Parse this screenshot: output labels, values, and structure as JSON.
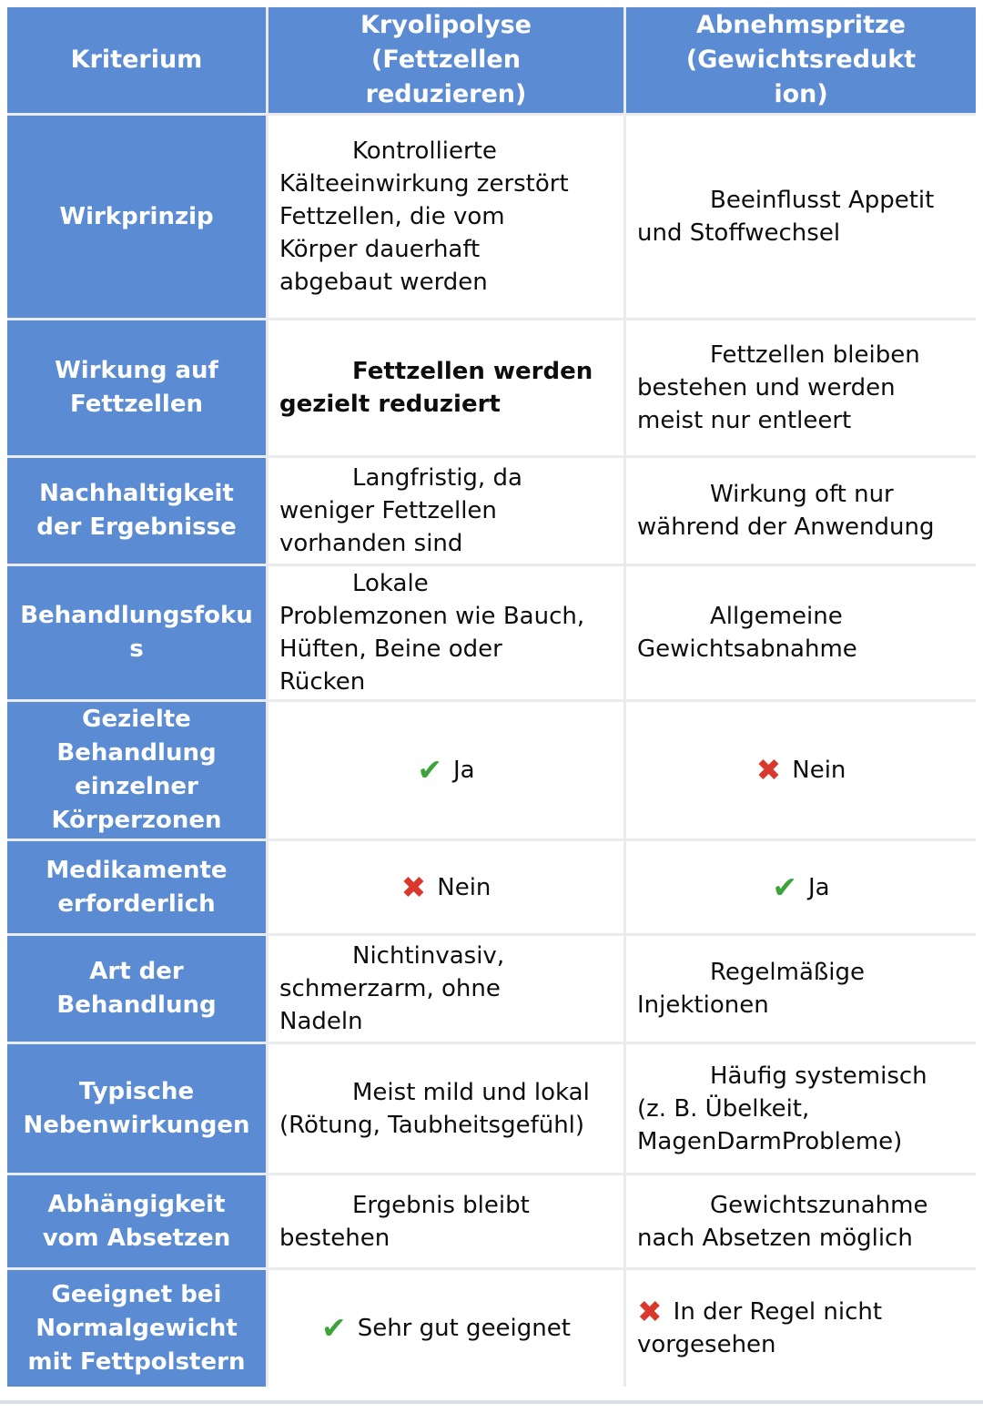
{
  "table": {
    "header": {
      "criterion": "Kriterium",
      "col2": {
        "title": "Kryolipolyse",
        "subtitle": "(Fettzellen reduzieren)"
      },
      "col3": {
        "title": "Abnehmspritze",
        "subtitle": "(Gewichtsreduktion)"
      }
    },
    "icons": {
      "check": "✔",
      "cross": "✖"
    },
    "colors": {
      "header_bg": "#5b8bd3",
      "check_green": "#3fa33c",
      "cross_red": "#d8392c"
    },
    "rows": [
      {
        "criterion": "Wirkprinzip",
        "kryo": {
          "text": "Kontrollierte\nKälteeinwirkung zerstört\nFettzellen, die vom\nKörper dauerhaft\nabgebaut werden"
        },
        "abnehm": {
          "text": "Beeinflusst Appetit\nund Stoffwechsel"
        }
      },
      {
        "criterion": "Wirkung auf Fettzellen",
        "kryo": {
          "text": "Fettzellen werden\ngezielt reduziert",
          "bold": true
        },
        "abnehm": {
          "text": "Fettzellen bleiben\nbestehen und werden\nmeist nur entleert"
        }
      },
      {
        "criterion": "Nachhaltigkeit der Ergebnisse",
        "kryo": {
          "text": "Langfristig, da\nweniger Fettzellen\nvorhanden sind"
        },
        "abnehm": {
          "text": "Wirkung oft nur\nwährend der Anwendung"
        }
      },
      {
        "criterion": "Behandlungsfokus",
        "kryo": {
          "text": "Lokale\nProblemzonen wie Bauch,\nHüften, Beine oder\nRücken"
        },
        "abnehm": {
          "text": "Allgemeine\nGewichtsabnahme"
        }
      },
      {
        "criterion": "Gezielte Behandlung einzelner Körperzonen",
        "kryo": {
          "icon": "check",
          "text": "Ja"
        },
        "abnehm": {
          "icon": "cross",
          "text": "Nein"
        }
      },
      {
        "criterion": "Medikamente erforderlich",
        "kryo": {
          "icon": "cross",
          "text": "Nein"
        },
        "abnehm": {
          "icon": "check",
          "text": "Ja"
        }
      },
      {
        "criterion": "Art der Behandlung",
        "kryo": {
          "text": "Nichtinvasiv,\nschmerzarm, ohne\nNadeln"
        },
        "abnehm": {
          "text": "Regelmäßige\nInjektionen"
        }
      },
      {
        "criterion": "Typische Nebenwirkungen",
        "kryo": {
          "text": "Meist mild und lokal\n(Rötung, Taubheitsgefühl)"
        },
        "abnehm": {
          "text": "Häufig systemisch\n(z. B. Übelkeit,\nMagenDarmProbleme)"
        }
      },
      {
        "criterion": "Abhängigkeit vom Absetzen",
        "kryo": {
          "text": "Ergebnis bleibt\nbestehen"
        },
        "abnehm": {
          "text": "Gewichtszunahme\nnach Absetzen möglich"
        }
      },
      {
        "criterion": "Geeignet bei Normalgewicht mit Fettpolstern",
        "kryo": {
          "icon": "check",
          "text": "Sehr gut geeignet"
        },
        "abnehm": {
          "icon": "cross",
          "text": "In der Regel nicht\nvorgesehen"
        }
      }
    ]
  }
}
